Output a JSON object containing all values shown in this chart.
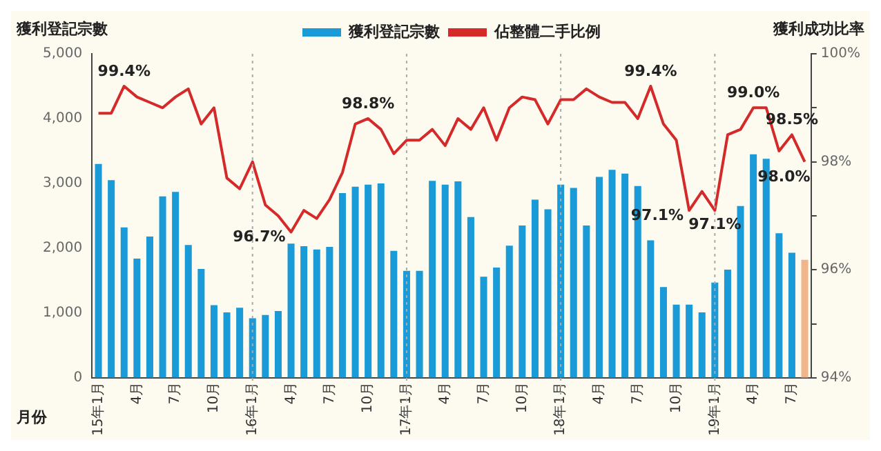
{
  "chart_data": {
    "type": "bar",
    "ylabel": "獲利登記宗數",
    "y2label": "獲利成功比率",
    "xlabel": "月份",
    "categories": [
      "15年1月",
      null,
      null,
      "4月",
      null,
      null,
      "7月",
      null,
      null,
      "10月",
      null,
      null,
      "16年1月",
      null,
      null,
      "4月",
      null,
      null,
      "7月",
      null,
      null,
      "10月",
      null,
      null,
      "17年1月",
      null,
      null,
      "4月",
      null,
      null,
      "7月",
      null,
      null,
      "10月",
      null,
      null,
      "18年1月",
      null,
      null,
      "4月",
      null,
      null,
      "7月",
      null,
      null,
      "10月",
      null,
      null,
      "19年1月",
      null,
      null,
      "4月",
      null,
      null,
      "7月",
      null
    ],
    "series": [
      {
        "name": "獲利登記宗數",
        "color": "#1a9ad6",
        "colors": [
          "#1a9ad6",
          "#1a9ad6",
          "#1a9ad6",
          "#1a9ad6",
          "#1a9ad6",
          "#1a9ad6",
          "#1a9ad6",
          "#1a9ad6",
          "#1a9ad6",
          "#1a9ad6",
          "#1a9ad6",
          "#1a9ad6",
          "#1a9ad6",
          "#1a9ad6",
          "#1a9ad6",
          "#1a9ad6",
          "#1a9ad6",
          "#1a9ad6",
          "#1a9ad6",
          "#1a9ad6",
          "#1a9ad6",
          "#1a9ad6",
          "#1a9ad6",
          "#1a9ad6",
          "#1a9ad6",
          "#1a9ad6",
          "#1a9ad6",
          "#1a9ad6",
          "#1a9ad6",
          "#1a9ad6",
          "#1a9ad6",
          "#1a9ad6",
          "#1a9ad6",
          "#1a9ad6",
          "#1a9ad6",
          "#1a9ad6",
          "#1a9ad6",
          "#1a9ad6",
          "#1a9ad6",
          "#1a9ad6",
          "#1a9ad6",
          "#1a9ad6",
          "#1a9ad6",
          "#1a9ad6",
          "#1a9ad6",
          "#1a9ad6",
          "#1a9ad6",
          "#1a9ad6",
          "#1a9ad6",
          "#1a9ad6",
          "#1a9ad6",
          "#1a9ad6",
          "#1a9ad6",
          "#1a9ad6",
          "#1a9ad6",
          "#f2b48a"
        ],
        "values": [
          3300,
          3050,
          2320,
          1840,
          2180,
          2800,
          2870,
          2050,
          1680,
          1120,
          1010,
          1080,
          920,
          970,
          1030,
          2070,
          2030,
          1980,
          2020,
          2850,
          2950,
          2980,
          3000,
          1960,
          1650,
          1650,
          3040,
          2980,
          3030,
          2480,
          1560,
          1700,
          2040,
          2350,
          2750,
          2600,
          2980,
          2930,
          2350,
          3100,
          3210,
          3150,
          2960,
          2120,
          1400,
          1130,
          1130,
          1010,
          1470,
          1670,
          2650,
          3450,
          3380,
          2230,
          1930,
          1820
        ]
      },
      {
        "name": "佔整體二手比例",
        "type": "line",
        "axis": "y2",
        "color": "#d42a2a",
        "values": [
          98.9,
          98.9,
          99.4,
          99.2,
          99.1,
          99.0,
          99.2,
          99.35,
          98.7,
          99.0,
          97.7,
          97.5,
          98.0,
          97.2,
          97.0,
          96.7,
          97.1,
          96.95,
          97.3,
          97.8,
          98.7,
          98.8,
          98.6,
          98.15,
          98.4,
          98.4,
          98.6,
          98.3,
          98.8,
          98.6,
          99.0,
          98.4,
          99.0,
          99.2,
          99.15,
          98.7,
          99.15,
          99.15,
          99.35,
          99.2,
          99.1,
          99.1,
          98.8,
          99.4,
          98.7,
          98.4,
          97.1,
          97.45,
          97.1,
          98.5,
          98.6,
          99.0,
          99.0,
          98.2,
          98.5,
          98.0
        ],
        "value_labels": [
          null,
          null,
          "99.4%",
          null,
          null,
          null,
          null,
          null,
          null,
          null,
          null,
          null,
          null,
          null,
          null,
          "96.7%",
          null,
          null,
          null,
          null,
          null,
          "98.8%",
          null,
          null,
          null,
          null,
          null,
          null,
          null,
          null,
          null,
          null,
          null,
          null,
          null,
          null,
          null,
          null,
          null,
          null,
          null,
          null,
          null,
          "99.4%",
          null,
          null,
          "97.1%",
          null,
          "97.1%",
          null,
          null,
          "99.0%",
          null,
          null,
          "98.5%",
          "98.0%"
        ]
      }
    ],
    "ylim": [
      0,
      5000
    ],
    "yticks": [
      {
        "value": 0,
        "label": "0"
      },
      {
        "value": 1000,
        "label": "1,000"
      },
      {
        "value": 2000,
        "label": "2,000"
      },
      {
        "value": 3000,
        "label": "3,000"
      },
      {
        "value": 4000,
        "label": "4,000"
      },
      {
        "value": 5000,
        "label": "5,000"
      }
    ],
    "y2lim": [
      94,
      100
    ],
    "y2ticks": [
      {
        "value": 94,
        "label": "94%"
      },
      {
        "value": 95,
        "label": null
      },
      {
        "value": 96,
        "label": "96%"
      },
      {
        "value": 97,
        "label": null
      },
      {
        "value": 98,
        "label": "98%"
      },
      {
        "value": 99,
        "label": null
      },
      {
        "value": 100,
        "label": "100%"
      }
    ],
    "ref_lines": [
      {
        "axis": "x",
        "value": "16年1月",
        "color": "#aaaaaa",
        "line_style": "dotted"
      },
      {
        "axis": "x",
        "value": "17年1月",
        "color": "#aaaaaa",
        "line_style": "dotted"
      },
      {
        "axis": "x",
        "value": "18年1月",
        "color": "#aaaaaa",
        "line_style": "dotted"
      },
      {
        "axis": "x",
        "value": "19年1月",
        "color": "#aaaaaa",
        "line_style": "dotted"
      }
    ],
    "legend": "top left",
    "grid": false,
    "marker": "none"
  }
}
